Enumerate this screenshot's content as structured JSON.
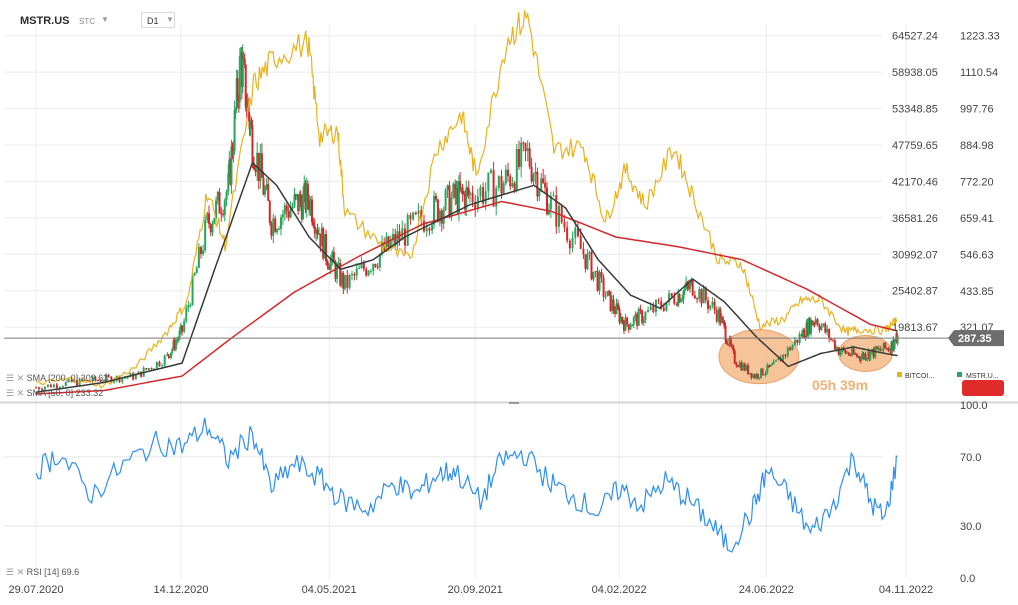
{
  "header": {
    "symbol": "MSTR.US",
    "chart_type": "STC",
    "timeframe": "D1"
  },
  "legend": {
    "sma200_text": "SMA [200, 0] 309.63",
    "sma50_text": "SMA [50, 0] 233.32",
    "rsi_text": "RSI [14]  69.6",
    "bitcoin_label": "BITCOI...",
    "mstr_label": "MSTR.U..."
  },
  "annotation": {
    "timer_text": "05h 39m"
  },
  "current_price": "287.35",
  "colors": {
    "bitcoin": "#e8b21e",
    "sma200": "#d3282b",
    "sma50": "#3a3a3a",
    "candle_up": "#26a65b",
    "candle_down": "#d3282b",
    "rsi": "#2f8ff0",
    "highlight_fill": "#f6b887",
    "price_tag": "#6d6d6d",
    "mstr_badge": "#e02b2b"
  },
  "chart_data": {
    "type": "line",
    "x_axis": {
      "tick_labels": [
        "29.07.2020",
        "14.12.2020",
        "04.05.2021",
        "20.09.2021",
        "04.02.2022",
        "24.06.2022",
        "04.11.2022"
      ]
    },
    "y_axis_left": {
      "label_series": "BITCOIN",
      "tick_labels": [
        "64527.24",
        "58938.05",
        "53348.85",
        "47759.65",
        "42170.46",
        "36581.26",
        "30992.07",
        "25402.87",
        "19813.67"
      ],
      "ylim": [
        8635,
        66322
      ]
    },
    "y_axis_right": {
      "label_series": "MSTR.US",
      "tick_labels": [
        "1223.33",
        "1110.54",
        "997.76",
        "884.98",
        "772.20",
        "659.41",
        "546.63",
        "433.85",
        "321.07"
      ],
      "ylim": [
        96,
        1259
      ]
    },
    "series": [
      {
        "name": "BITCOIN",
        "axis": "left",
        "x": [
          "2020-07-29",
          "2020-09-01",
          "2020-10-01",
          "2020-11-01",
          "2020-12-01",
          "2020-12-20",
          "2021-01-08",
          "2021-01-25",
          "2021-02-21",
          "2021-03-13",
          "2021-04-14",
          "2021-04-25",
          "2021-05-12",
          "2021-05-19",
          "2021-06-22",
          "2021-07-20",
          "2021-08-14",
          "2021-09-07",
          "2021-09-21",
          "2021-10-20",
          "2021-11-09",
          "2021-12-04",
          "2022-01-01",
          "2022-01-22",
          "2022-02-10",
          "2022-03-01",
          "2022-03-28",
          "2022-04-15",
          "2022-05-10",
          "2022-06-01",
          "2022-06-18",
          "2022-07-10",
          "2022-07-28",
          "2022-08-15",
          "2022-09-07",
          "2022-09-20",
          "2022-10-15",
          "2022-10-26"
        ],
        "values": [
          11100,
          11900,
          10800,
          13700,
          19200,
          23800,
          40500,
          32500,
          57000,
          61200,
          63500,
          49000,
          50000,
          37500,
          32500,
          30000,
          47000,
          52500,
          43000,
          64000,
          67500,
          47000,
          47500,
          36000,
          44000,
          38500,
          47500,
          40000,
          30000,
          29500,
          20000,
          21000,
          24000,
          24000,
          19000,
          19500,
          19300,
          20800
        ]
      },
      {
        "name": "MSTR.US",
        "axis": "right",
        "x": [
          "2020-07-29",
          "2020-09-01",
          "2020-10-01",
          "2020-11-01",
          "2020-12-01",
          "2020-12-15",
          "2021-01-08",
          "2021-01-28",
          "2021-02-09",
          "2021-02-20",
          "2021-03-10",
          "2021-04-01",
          "2021-04-15",
          "2021-05-01",
          "2021-05-19",
          "2021-06-15",
          "2021-07-10",
          "2021-08-10",
          "2021-09-01",
          "2021-09-15",
          "2021-10-15",
          "2021-11-09",
          "2021-12-01",
          "2022-01-01",
          "2022-01-24",
          "2022-02-10",
          "2022-03-01",
          "2022-03-31",
          "2022-04-15",
          "2022-05-10",
          "2022-05-25",
          "2022-06-13",
          "2022-07-01",
          "2022-07-28",
          "2022-08-10",
          "2022-09-01",
          "2022-09-20",
          "2022-10-01",
          "2022-10-20",
          "2022-10-27"
        ],
        "values": [
          135,
          150,
          160,
          170,
          230,
          310,
          640,
          750,
          1150,
          900,
          650,
          700,
          720,
          550,
          450,
          530,
          600,
          680,
          720,
          730,
          760,
          850,
          700,
          550,
          410,
          330,
          360,
          420,
          450,
          360,
          220,
          170,
          200,
          300,
          350,
          250,
          230,
          240,
          260,
          287
        ]
      },
      {
        "name": "SMA [200, 0]",
        "axis": "right",
        "x": [
          "2020-07-29",
          "2020-10-01",
          "2020-12-15",
          "2021-02-01",
          "2021-04-01",
          "2021-06-01",
          "2021-08-01",
          "2021-10-15",
          "2021-12-01",
          "2022-02-01",
          "2022-04-01",
          "2022-06-01",
          "2022-08-01",
          "2022-10-01",
          "2022-10-27"
        ],
        "values": [
          115,
          125,
          170,
          290,
          430,
          540,
          640,
          710,
          680,
          600,
          570,
          530,
          440,
          330,
          309.63
        ]
      },
      {
        "name": "SMA [50, 0]",
        "axis": "right",
        "x": [
          "2020-07-29",
          "2020-10-01",
          "2020-12-15",
          "2021-01-15",
          "2021-02-20",
          "2021-03-15",
          "2021-04-15",
          "2021-05-15",
          "2021-06-15",
          "2021-07-15",
          "2021-08-15",
          "2021-09-15",
          "2021-10-15",
          "2021-11-15",
          "2021-12-15",
          "2022-01-15",
          "2022-02-15",
          "2022-03-15",
          "2022-04-15",
          "2022-05-15",
          "2022-06-15",
          "2022-07-15",
          "2022-08-15",
          "2022-09-15",
          "2022-10-15",
          "2022-10-27"
        ],
        "values": [
          120,
          150,
          210,
          500,
          830,
          760,
          600,
          500,
          530,
          600,
          650,
          700,
          730,
          760,
          690,
          530,
          420,
          380,
          470,
          400,
          290,
          200,
          240,
          260,
          240,
          233.32
        ]
      }
    ],
    "rsi": {
      "name": "RSI [14]",
      "last": 69.6,
      "ylim": [
        0,
        100
      ],
      "tick_labels": [
        "100.0",
        "70.0",
        "30.0",
        "0.0"
      ],
      "x": [
        "2020-07-29",
        "2020-08-20",
        "2020-09-20",
        "2020-10-20",
        "2020-11-20",
        "2020-12-15",
        "2021-01-08",
        "2021-01-28",
        "2021-02-20",
        "2021-03-10",
        "2021-04-01",
        "2021-04-25",
        "2021-05-15",
        "2021-06-10",
        "2021-07-05",
        "2021-07-25",
        "2021-08-15",
        "2021-09-01",
        "2021-09-25",
        "2021-10-15",
        "2021-11-05",
        "2021-12-01",
        "2021-12-20",
        "2022-01-15",
        "2022-02-05",
        "2022-02-25",
        "2022-03-20",
        "2022-04-10",
        "2022-05-01",
        "2022-05-20",
        "2022-06-10",
        "2022-06-25",
        "2022-07-15",
        "2022-08-05",
        "2022-08-25",
        "2022-09-15",
        "2022-10-01",
        "2022-10-15",
        "2022-10-27"
      ],
      "values": [
        62,
        72,
        48,
        65,
        78,
        76,
        88,
        68,
        84,
        52,
        66,
        58,
        45,
        40,
        55,
        48,
        60,
        62,
        44,
        68,
        72,
        55,
        48,
        38,
        52,
        42,
        56,
        46,
        32,
        18,
        38,
        62,
        48,
        26,
        40,
        70,
        44,
        34,
        69.6
      ]
    },
    "highlights": [
      {
        "x_start": "2022-05-10",
        "x_end": "2022-07-25",
        "y_center": 230
      },
      {
        "x_start": "2022-09-01",
        "x_end": "2022-10-22",
        "y_center": 240
      }
    ],
    "reference_line": {
      "axis": "right",
      "value": 287.35
    },
    "xlabel": "",
    "ylabel": "",
    "grid": true
  }
}
